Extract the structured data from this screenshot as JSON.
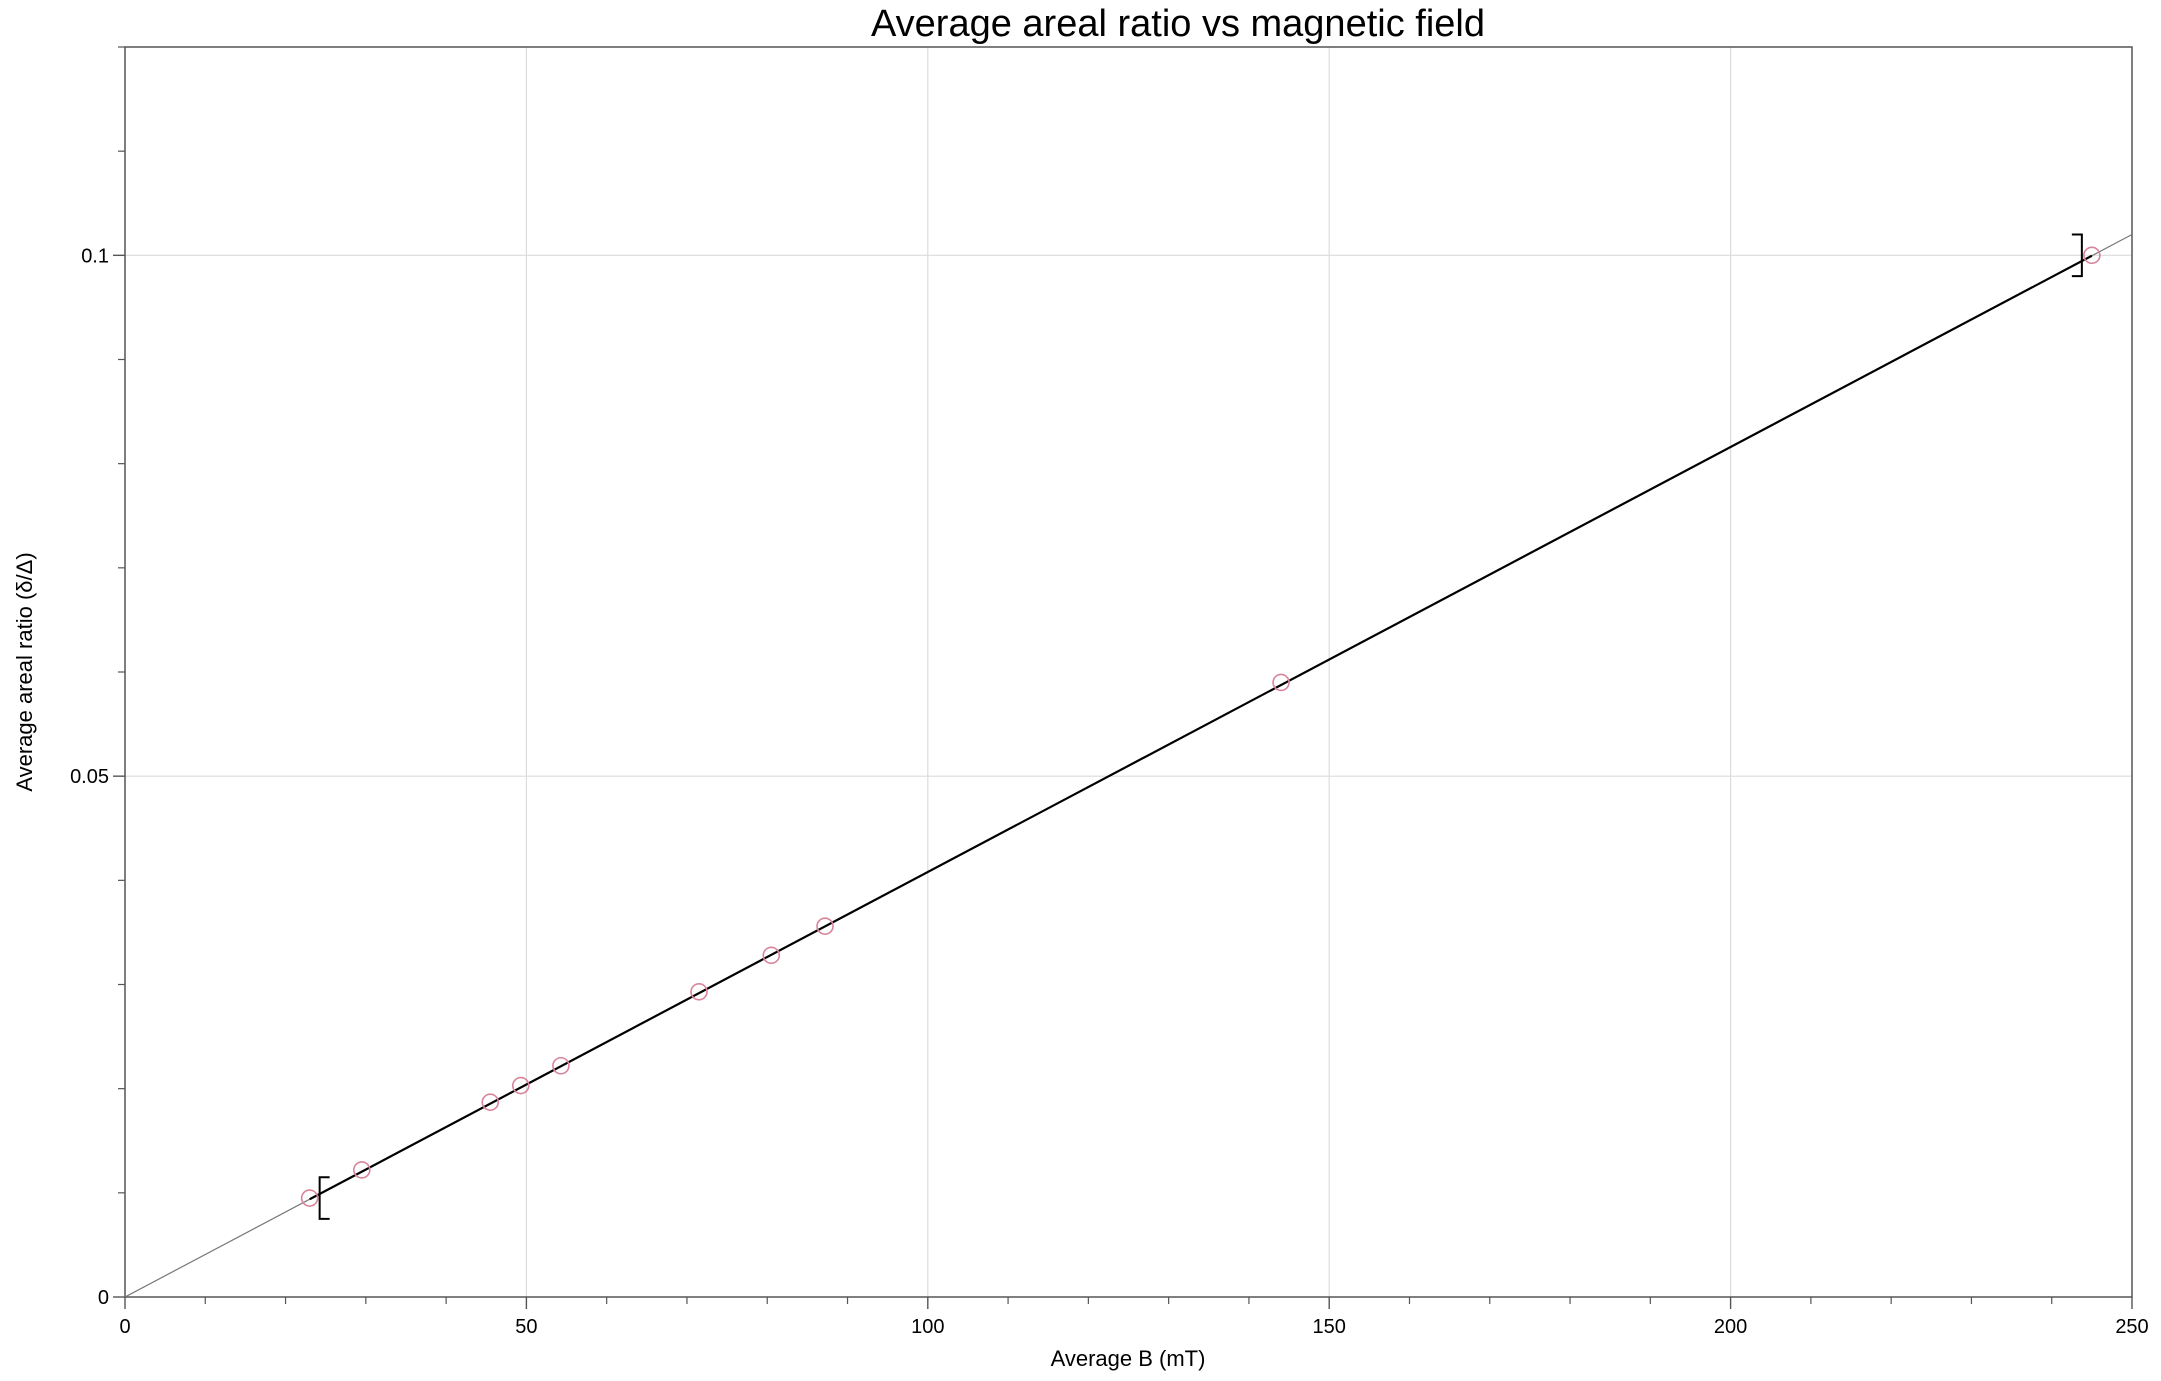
{
  "chart_data": {
    "type": "scatter",
    "title": "Average areal ratio vs magnetic field",
    "xlabel": "Average B (mT)",
    "ylabel": "Average areal ratio (δ/Δ)",
    "xlim": [
      0,
      250
    ],
    "ylim": [
      0,
      0.12
    ],
    "x_ticks": [
      0,
      50,
      100,
      150,
      200,
      250
    ],
    "x_tick_labels": [
      "0",
      "50",
      "100",
      "150",
      "200",
      "250"
    ],
    "x_minor_step": 10,
    "y_ticks": [
      0,
      0.05,
      0.1
    ],
    "y_tick_labels": [
      "0",
      "0.05",
      "0.1"
    ],
    "y_minor_step": 0.01,
    "grid": true,
    "series": [
      {
        "marker": "open-circle",
        "color": "#d9849a",
        "x": [
          23.0,
          29.5,
          45.5,
          49.3,
          54.3,
          71.5,
          80.5,
          87.2,
          144.0,
          245.0
        ],
        "y": [
          0.0095,
          0.0122,
          0.0187,
          0.0203,
          0.0222,
          0.0293,
          0.0328,
          0.0356,
          0.059,
          0.1
        ]
      }
    ],
    "fit_line": {
      "color": "#000000",
      "thin_from_x": 0,
      "thin_to_x": 250,
      "thin_from_y": 0,
      "thin_to_y": 0.102,
      "thick_from_x": 23.0,
      "thick_to_x": 245.0
    },
    "bracket_markers": [
      {
        "x": 23.0,
        "side": "left",
        "y_low": 0.0075,
        "y_high": 0.0115
      },
      {
        "x": 245.0,
        "side": "right",
        "y_low": 0.098,
        "y_high": 0.102
      }
    ]
  }
}
